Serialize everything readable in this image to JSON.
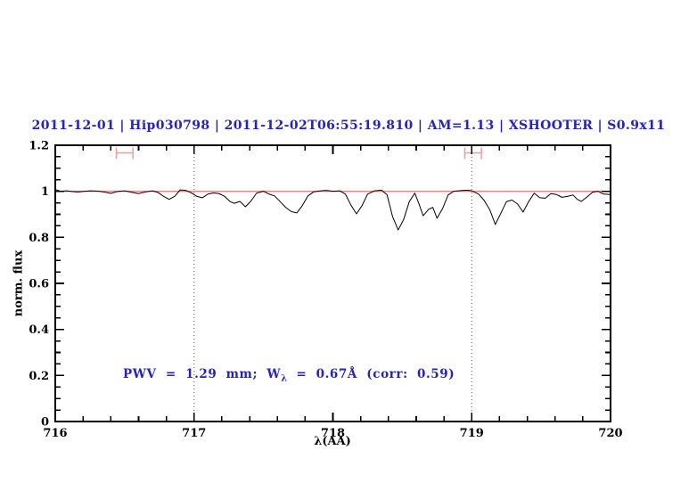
{
  "title": {
    "text": "2011-12-01 | Hip030798 | 2011-12-02T06:55:19.810 | AM=1.13 | XSHOOTER | S0.9x11",
    "color": "#2222cc"
  },
  "annotation": {
    "prefix": "PWV = 1.29 mm; W",
    "subscript": "λ",
    "suffix": " = 0.67Å (corr: 0.59)",
    "color": "#2222cc"
  },
  "colors": {
    "title_blue": "#2222cc",
    "continuum_red": "#f08080",
    "marker_red": "#f4a0a0",
    "spectrum_black": "#000000",
    "dotted_gray": "#555555",
    "frame_black": "#000000",
    "background": "#ffffff"
  },
  "chart_data": {
    "type": "line",
    "title": "2011-12-01 | Hip030798 | 2011-12-02T06:55:19.810 | AM=1.13 | XSHOOTER | S0.9x11",
    "xlabel": "λ(AA)",
    "ylabel": "norm. flux",
    "xlim": [
      716,
      720
    ],
    "ylim": [
      0,
      1.2
    ],
    "grid": "off",
    "legend": "none",
    "x_major_ticks": [
      716,
      717,
      718,
      719,
      720
    ],
    "x_major_labels": [
      "716",
      "717",
      "718",
      "719",
      "720"
    ],
    "x_minor_step": 0.2,
    "y_major_ticks": [
      0,
      0.2,
      0.4,
      0.6,
      0.8,
      1,
      1.2
    ],
    "y_major_labels": [
      "0",
      "0.2",
      "0.4",
      "0.6",
      "0.8",
      "1",
      "1.2"
    ],
    "y_minor_step": 0.05,
    "dotted_vlines": [
      717,
      719
    ],
    "continuum_line": {
      "y": 1.0
    },
    "range_markers": [
      {
        "x_min": 716.44,
        "x_max": 716.56,
        "y": 1.167,
        "cap_lo": 1.14,
        "cap_hi": 1.19
      },
      {
        "x_min": 718.95,
        "x_max": 719.07,
        "y": 1.167,
        "cap_lo": 1.14,
        "cap_hi": 1.19
      }
    ],
    "series": [
      {
        "name": "spectrum",
        "x": [
          716.0,
          716.04,
          716.08,
          716.12,
          716.16,
          716.2,
          716.25,
          716.3,
          716.35,
          716.4,
          716.45,
          716.5,
          716.55,
          716.6,
          716.65,
          716.7,
          716.74,
          716.78,
          716.82,
          716.86,
          716.9,
          716.94,
          716.98,
          717.02,
          717.06,
          717.1,
          717.14,
          717.18,
          717.22,
          717.26,
          717.29,
          717.33,
          717.37,
          717.41,
          717.45,
          717.5,
          717.54,
          717.58,
          717.62,
          717.66,
          717.7,
          717.74,
          717.78,
          717.82,
          717.86,
          717.9,
          717.95,
          718.0,
          718.05,
          718.09,
          718.13,
          718.17,
          718.21,
          718.25,
          718.3,
          718.35,
          718.39,
          718.43,
          718.47,
          718.51,
          718.55,
          718.59,
          718.62,
          718.65,
          718.69,
          718.72,
          718.75,
          718.79,
          718.83,
          718.87,
          718.92,
          718.97,
          719.0,
          719.05,
          719.09,
          719.13,
          719.17,
          719.21,
          719.25,
          719.29,
          719.33,
          719.37,
          719.41,
          719.45,
          719.49,
          719.53,
          719.57,
          719.61,
          719.65,
          719.69,
          719.73,
          719.76,
          719.79,
          719.83,
          719.87,
          719.91,
          719.95,
          720.0
        ],
        "y": [
          1.008,
          1.0,
          1.002,
          0.999,
          0.997,
          0.999,
          1.002,
          1.001,
          0.997,
          0.991,
          0.999,
          1.002,
          0.996,
          0.99,
          0.997,
          1.002,
          0.995,
          0.978,
          0.965,
          0.978,
          1.006,
          1.004,
          0.993,
          0.978,
          0.972,
          0.988,
          0.993,
          0.99,
          0.978,
          0.955,
          0.948,
          0.956,
          0.933,
          0.958,
          0.992,
          1.0,
          0.988,
          0.98,
          0.955,
          0.93,
          0.912,
          0.906,
          0.938,
          0.98,
          0.997,
          1.001,
          1.004,
          1.0,
          1.002,
          0.988,
          0.94,
          0.902,
          0.938,
          0.988,
          1.002,
          1.005,
          0.985,
          0.89,
          0.832,
          0.878,
          0.955,
          0.992,
          0.945,
          0.894,
          0.922,
          0.93,
          0.883,
          0.925,
          0.984,
          1.0,
          1.003,
          1.005,
          1.002,
          0.988,
          0.96,
          0.92,
          0.856,
          0.905,
          0.955,
          0.962,
          0.945,
          0.91,
          0.955,
          0.992,
          0.972,
          0.97,
          0.99,
          0.986,
          0.974,
          0.978,
          0.984,
          0.965,
          0.956,
          0.975,
          0.996,
          1.0,
          0.988,
          0.986
        ]
      }
    ]
  }
}
